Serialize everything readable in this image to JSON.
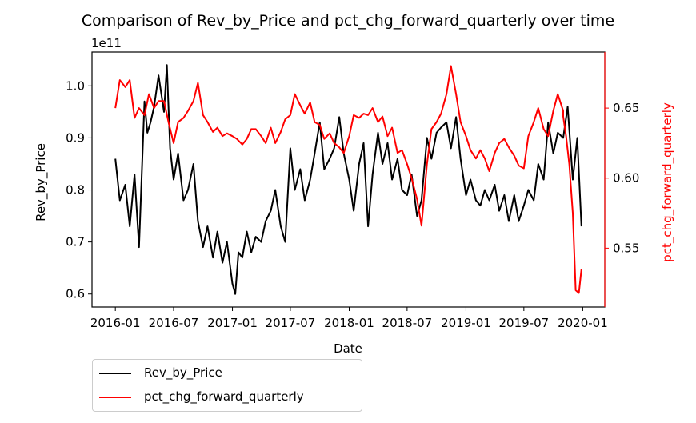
{
  "chart_data": {
    "type": "line",
    "title": "Comparison of Rev_by_Price and pct_chg_forward_quarterly over time",
    "xlabel": "Date",
    "ylabel": "Rev_by_Price",
    "y2label": "pct_chg_forward_quarterly",
    "y_offset_text": "1e11",
    "x_ticks": [
      "2016-01",
      "2016-07",
      "2017-01",
      "2017-07",
      "2018-01",
      "2018-07",
      "2019-01",
      "2019-07",
      "2020-01"
    ],
    "y_ticks": [
      "0.6",
      "0.7",
      "0.8",
      "0.9",
      "1.0"
    ],
    "y2_ticks": [
      "0.55",
      "0.60",
      "0.65"
    ],
    "xlim": [
      "2015-10-20",
      "2020-03-10"
    ],
    "ylim": [
      0.575,
      1.065
    ],
    "y2lim": [
      0.508,
      0.69
    ],
    "legend_position": "below-left",
    "colors": {
      "primary": "#000000",
      "secondary": "#ff0000"
    },
    "series": [
      {
        "name": "Rev_by_Price",
        "axis": "left",
        "color": "#000000",
        "x": [
          "2016-01-01",
          "2016-01-15",
          "2016-02-01",
          "2016-02-15",
          "2016-03-01",
          "2016-03-15",
          "2016-04-01",
          "2016-04-10",
          "2016-04-20",
          "2016-05-01",
          "2016-05-15",
          "2016-06-01",
          "2016-06-10",
          "2016-06-20",
          "2016-07-01",
          "2016-07-15",
          "2016-08-01",
          "2016-08-15",
          "2016-09-01",
          "2016-09-15",
          "2016-10-01",
          "2016-10-15",
          "2016-11-01",
          "2016-11-15",
          "2016-12-01",
          "2016-12-15",
          "2017-01-01",
          "2017-01-10",
          "2017-01-20",
          "2017-02-01",
          "2017-02-15",
          "2017-03-01",
          "2017-03-15",
          "2017-04-01",
          "2017-04-15",
          "2017-05-01",
          "2017-05-15",
          "2017-06-01",
          "2017-06-15",
          "2017-07-01",
          "2017-07-15",
          "2017-08-01",
          "2017-08-15",
          "2017-09-01",
          "2017-09-15",
          "2017-10-01",
          "2017-10-15",
          "2017-11-01",
          "2017-11-15",
          "2017-12-01",
          "2017-12-15",
          "2018-01-01",
          "2018-01-15",
          "2018-02-01",
          "2018-02-15",
          "2018-03-01",
          "2018-03-15",
          "2018-04-01",
          "2018-04-15",
          "2018-05-01",
          "2018-05-15",
          "2018-06-01",
          "2018-06-15",
          "2018-07-01",
          "2018-07-15",
          "2018-08-01",
          "2018-08-15",
          "2018-09-01",
          "2018-09-15",
          "2018-10-01",
          "2018-10-15",
          "2018-11-01",
          "2018-11-15",
          "2018-12-01",
          "2018-12-15",
          "2019-01-01",
          "2019-01-15",
          "2019-02-01",
          "2019-02-15",
          "2019-03-01",
          "2019-03-15",
          "2019-04-01",
          "2019-04-15",
          "2019-05-01",
          "2019-05-15",
          "2019-06-01",
          "2019-06-15",
          "2019-07-01",
          "2019-07-15",
          "2019-08-01",
          "2019-08-15",
          "2019-09-01",
          "2019-09-15",
          "2019-10-01",
          "2019-10-15",
          "2019-11-01",
          "2019-11-15",
          "2019-12-01",
          "2019-12-15",
          "2019-12-28"
        ],
        "values": [
          0.86,
          0.78,
          0.81,
          0.73,
          0.83,
          0.69,
          0.97,
          0.91,
          0.93,
          0.96,
          1.02,
          0.95,
          1.04,
          0.88,
          0.82,
          0.87,
          0.78,
          0.8,
          0.85,
          0.74,
          0.69,
          0.73,
          0.67,
          0.72,
          0.66,
          0.7,
          0.62,
          0.6,
          0.68,
          0.67,
          0.72,
          0.68,
          0.71,
          0.7,
          0.74,
          0.76,
          0.8,
          0.73,
          0.7,
          0.88,
          0.8,
          0.84,
          0.78,
          0.82,
          0.87,
          0.93,
          0.84,
          0.86,
          0.88,
          0.94,
          0.87,
          0.82,
          0.76,
          0.85,
          0.89,
          0.73,
          0.83,
          0.91,
          0.85,
          0.89,
          0.82,
          0.86,
          0.8,
          0.79,
          0.83,
          0.75,
          0.78,
          0.9,
          0.86,
          0.91,
          0.92,
          0.93,
          0.88,
          0.94,
          0.86,
          0.79,
          0.82,
          0.78,
          0.77,
          0.8,
          0.78,
          0.81,
          0.76,
          0.79,
          0.74,
          0.79,
          0.74,
          0.77,
          0.8,
          0.78,
          0.85,
          0.82,
          0.93,
          0.87,
          0.91,
          0.9,
          0.96,
          0.82,
          0.9,
          0.73
        ]
      },
      {
        "name": "pct_chg_forward_quarterly",
        "axis": "right",
        "color": "#ff0000",
        "x": [
          "2016-01-01",
          "2016-01-15",
          "2016-02-01",
          "2016-02-15",
          "2016-03-01",
          "2016-03-15",
          "2016-04-01",
          "2016-04-15",
          "2016-05-01",
          "2016-05-15",
          "2016-06-01",
          "2016-06-15",
          "2016-07-01",
          "2016-07-15",
          "2016-08-01",
          "2016-08-15",
          "2016-09-01",
          "2016-09-15",
          "2016-10-01",
          "2016-10-15",
          "2016-11-01",
          "2016-11-15",
          "2016-12-01",
          "2016-12-15",
          "2017-01-01",
          "2017-01-15",
          "2017-02-01",
          "2017-02-15",
          "2017-03-01",
          "2017-03-15",
          "2017-04-01",
          "2017-04-15",
          "2017-05-01",
          "2017-05-15",
          "2017-06-01",
          "2017-06-15",
          "2017-07-01",
          "2017-07-15",
          "2017-08-01",
          "2017-08-15",
          "2017-09-01",
          "2017-09-15",
          "2017-10-01",
          "2017-10-15",
          "2017-11-01",
          "2017-11-15",
          "2017-12-01",
          "2017-12-15",
          "2018-01-01",
          "2018-01-15",
          "2018-02-01",
          "2018-02-15",
          "2018-03-01",
          "2018-03-15",
          "2018-04-01",
          "2018-04-15",
          "2018-05-01",
          "2018-05-15",
          "2018-06-01",
          "2018-06-15",
          "2018-07-01",
          "2018-07-15",
          "2018-08-01",
          "2018-08-15",
          "2018-09-01",
          "2018-09-15",
          "2018-10-01",
          "2018-10-15",
          "2018-11-01",
          "2018-11-15",
          "2018-12-01",
          "2018-12-15",
          "2019-01-01",
          "2019-01-15",
          "2019-02-01",
          "2019-02-15",
          "2019-03-01",
          "2019-03-15",
          "2019-04-01",
          "2019-04-15",
          "2019-05-01",
          "2019-05-15",
          "2019-06-01",
          "2019-06-15",
          "2019-07-01",
          "2019-07-15",
          "2019-08-01",
          "2019-08-15",
          "2019-09-01",
          "2019-09-15",
          "2019-10-01",
          "2019-10-15",
          "2019-11-01",
          "2019-11-01",
          "2019-11-10",
          "2019-11-20",
          "2019-12-01",
          "2019-12-10",
          "2019-12-20",
          "2019-12-28"
        ],
        "values": [
          0.65,
          0.67,
          0.665,
          0.67,
          0.643,
          0.65,
          0.645,
          0.66,
          0.65,
          0.655,
          0.655,
          0.64,
          0.625,
          0.64,
          0.643,
          0.648,
          0.655,
          0.668,
          0.645,
          0.64,
          0.633,
          0.636,
          0.63,
          0.632,
          0.63,
          0.628,
          0.624,
          0.628,
          0.635,
          0.635,
          0.63,
          0.625,
          0.636,
          0.625,
          0.633,
          0.642,
          0.645,
          0.66,
          0.652,
          0.646,
          0.654,
          0.64,
          0.638,
          0.628,
          0.632,
          0.625,
          0.622,
          0.618,
          0.63,
          0.645,
          0.643,
          0.646,
          0.645,
          0.65,
          0.64,
          0.644,
          0.63,
          0.636,
          0.618,
          0.62,
          0.61,
          0.6,
          0.585,
          0.566,
          0.61,
          0.635,
          0.64,
          0.646,
          0.66,
          0.68,
          0.66,
          0.64,
          0.63,
          0.62,
          0.614,
          0.62,
          0.614,
          0.605,
          0.618,
          0.625,
          0.628,
          0.622,
          0.616,
          0.609,
          0.607,
          0.63,
          0.64,
          0.65,
          0.635,
          0.63,
          0.648,
          0.66,
          0.648,
          0.644,
          0.63,
          0.61,
          0.575,
          0.52,
          0.518,
          0.535
        ]
      }
    ]
  }
}
